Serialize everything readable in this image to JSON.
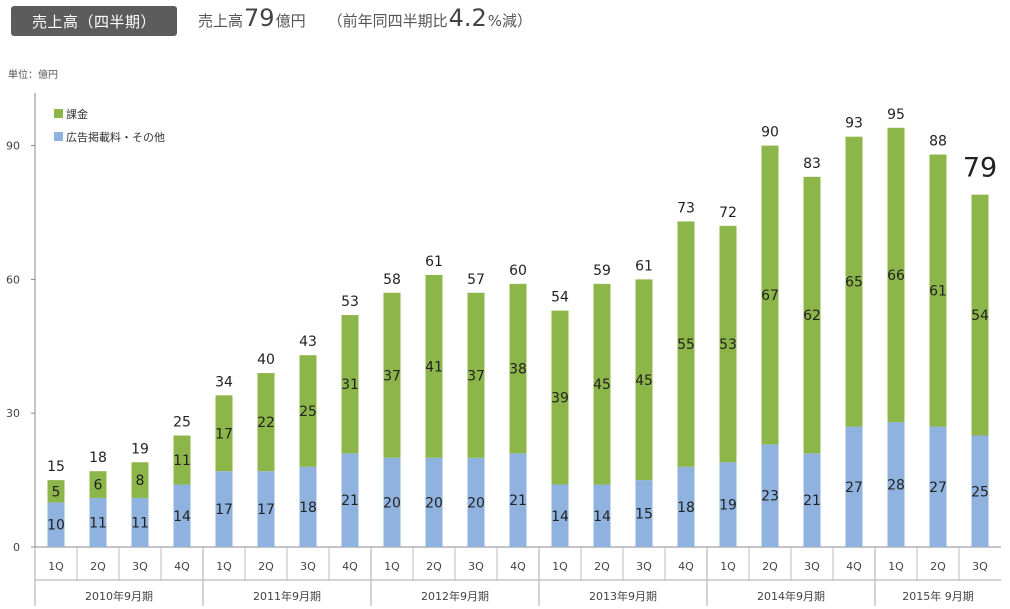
{
  "header": {
    "badge": "売上高（四半期）",
    "summary_label": "売上高",
    "summary_value": "79",
    "summary_unit": "億円",
    "change_prefix": "（前年同四半期比",
    "change_value": "4.2",
    "change_suffix": "%減）"
  },
  "unit_label": "単位：億円",
  "chart_data": {
    "type": "bar",
    "stacked": true,
    "title": "売上高（四半期）",
    "ylabel": "単位：億円",
    "ylim": [
      0,
      100
    ],
    "yticks": [
      0,
      30,
      60,
      90
    ],
    "grid": false,
    "legend_position": "top-left",
    "categories": [
      "1Q",
      "2Q",
      "3Q",
      "4Q",
      "1Q",
      "2Q",
      "3Q",
      "4Q",
      "1Q",
      "2Q",
      "3Q",
      "4Q",
      "1Q",
      "2Q",
      "3Q",
      "4Q",
      "1Q",
      "2Q",
      "3Q",
      "4Q",
      "1Q",
      "2Q",
      "3Q"
    ],
    "groups": [
      {
        "label": "2010年9月期",
        "count": 4
      },
      {
        "label": "2011年9月期",
        "count": 4
      },
      {
        "label": "2012年9月期",
        "count": 4
      },
      {
        "label": "2013年9月期",
        "count": 4
      },
      {
        "label": "2014年9月期",
        "count": 4
      },
      {
        "label": "2015年 9月期",
        "count": 3
      }
    ],
    "series": [
      {
        "name": "広告掲載料・その他",
        "color": "#8fb3de",
        "values": [
          10,
          11,
          11,
          14,
          17,
          17,
          18,
          21,
          20,
          20,
          20,
          21,
          14,
          14,
          15,
          18,
          19,
          23,
          21,
          27,
          28,
          27,
          25
        ]
      },
      {
        "name": "課金",
        "color": "#8db64a",
        "values": [
          5,
          6,
          8,
          11,
          17,
          22,
          25,
          31,
          37,
          41,
          37,
          38,
          39,
          45,
          45,
          55,
          53,
          67,
          62,
          65,
          66,
          61,
          54
        ]
      }
    ],
    "totals": [
      15,
      18,
      19,
      25,
      34,
      40,
      43,
      53,
      58,
      61,
      57,
      60,
      54,
      59,
      61,
      73,
      72,
      90,
      83,
      93,
      95,
      88,
      79
    ],
    "legend": [
      {
        "name": "課金",
        "color": "#8db64a"
      },
      {
        "name": "広告掲載料・その他",
        "color": "#8fb3de"
      }
    ]
  }
}
